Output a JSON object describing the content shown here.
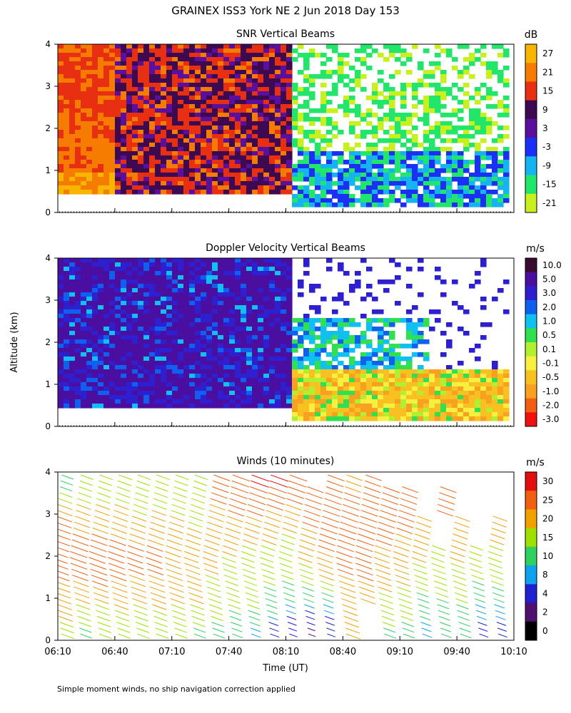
{
  "title": "GRAINEX ISS3 York NE   2 Jun 2018 Day 153",
  "y_axis_label": "Altitude (km)",
  "x_axis_label": "Time (UT)",
  "footnote": "Simple moment winds, no ship navigation correction applied",
  "time_ticks": [
    "06:10",
    "06:40",
    "07:10",
    "07:40",
    "08:10",
    "08:40",
    "09:10",
    "09:40",
    "10:10"
  ],
  "chart_data": [
    {
      "type": "heatmap",
      "title": "SNR Vertical Beams",
      "unit": "dB",
      "xlim": [
        "06:10",
        "10:10"
      ],
      "ylim": [
        0,
        4
      ],
      "yticks": [
        0,
        1,
        2,
        3,
        4
      ],
      "colorbar": {
        "labels": [
          "27",
          "21",
          "15",
          "9",
          "3",
          "-3",
          "-9",
          "-15",
          "-21"
        ],
        "colors": [
          "#f7b500",
          "#f57c00",
          "#e82f12",
          "#3d0a52",
          "#5a0f9e",
          "#1b2ff5",
          "#15b4f0",
          "#22e66a",
          "#c8ef1e"
        ]
      },
      "regions": [
        {
          "time": [
            "06:10",
            "06:40"
          ],
          "altitude": [
            0.5,
            4.0
          ],
          "dB": "15 to 27"
        },
        {
          "time": [
            "06:40",
            "08:12"
          ],
          "altitude": [
            0.5,
            4.0
          ],
          "dB": "9 to 21"
        },
        {
          "time": [
            "08:12",
            "10:10"
          ],
          "altitude": [
            0.2,
            1.5
          ],
          "dB": "-15 to -3"
        },
        {
          "time": [
            "08:12",
            "10:10"
          ],
          "altitude": [
            1.5,
            4.0
          ],
          "dB": "-21 to -9"
        }
      ]
    },
    {
      "type": "heatmap",
      "title": "Doppler Velocity Vertical Beams",
      "unit": "m/s",
      "xlim": [
        "06:10",
        "10:10"
      ],
      "ylim": [
        0,
        4
      ],
      "yticks": [
        0,
        1,
        2,
        3,
        4
      ],
      "colorbar": {
        "labels": [
          "10.0",
          "5.0",
          "3.0",
          "2.0",
          "1.0",
          "0.5",
          "0.1",
          "-0.1",
          "-0.5",
          "-1.0",
          "-2.0",
          "-3.0"
        ],
        "colors": [
          "#3a0a30",
          "#4a0fa0",
          "#2e1fd0",
          "#1060f0",
          "#10c0f0",
          "#30e050",
          "#b0f030",
          "#f8f040",
          "#f8c020",
          "#f8a020",
          "#f06010",
          "#f01010"
        ]
      },
      "regions": [
        {
          "time": [
            "06:10",
            "08:12"
          ],
          "altitude": [
            0.5,
            4.0
          ],
          "m_s": "3.0 to 5.0"
        },
        {
          "time": [
            "08:12",
            "10:10"
          ],
          "altitude": [
            0.2,
            1.5
          ],
          "m_s": "-1.0 to -0.1"
        },
        {
          "time": [
            "08:12",
            "09:10"
          ],
          "altitude": [
            1.5,
            2.6
          ],
          "m_s": "0.1 to 2.0"
        }
      ]
    },
    {
      "type": "wind_barbs",
      "title": "Winds (10 minutes)",
      "unit": "m/s",
      "xlim": [
        "06:10",
        "10:10"
      ],
      "ylim": [
        0,
        4
      ],
      "yticks": [
        0,
        1,
        2,
        3,
        4
      ],
      "colorbar": {
        "labels": [
          "30",
          "25",
          "20",
          "15",
          "10",
          "8",
          "4",
          "2",
          "0"
        ],
        "colors": [
          "#e01010",
          "#f06010",
          "#f0a000",
          "#a0e000",
          "#30d060",
          "#10a0f0",
          "#2020d0",
          "#501070",
          "#000000"
        ]
      },
      "profiles": [
        {
          "time": "06:10",
          "speeds": [
            18,
            22,
            26,
            28,
            25,
            14
          ]
        },
        {
          "time": "06:20",
          "speeds": [
            14,
            20,
            26,
            28,
            22,
            16
          ]
        },
        {
          "time": "06:30",
          "speeds": [
            16,
            20,
            27,
            27,
            22,
            17
          ]
        },
        {
          "time": "06:40",
          "speeds": [
            15,
            21,
            26,
            26,
            21,
            18
          ]
        },
        {
          "time": "06:50",
          "speeds": [
            16,
            20,
            25,
            25,
            20,
            17
          ]
        },
        {
          "time": "07:00",
          "speeds": [
            15,
            21,
            25,
            25,
            21,
            17
          ]
        },
        {
          "time": "07:10",
          "speeds": [
            15,
            20,
            24,
            24,
            20,
            17
          ]
        },
        {
          "time": "07:20",
          "speeds": [
            14,
            20,
            22,
            22,
            19,
            17
          ]
        },
        {
          "time": "07:30",
          "speeds": [
            14,
            17,
            20,
            22,
            24,
            26
          ]
        },
        {
          "time": "07:40",
          "speeds": [
            10,
            16,
            18,
            21,
            25,
            29
          ]
        },
        {
          "time": "07:50",
          "speeds": [
            8,
            16,
            17,
            20,
            25,
            30
          ]
        },
        {
          "time": "08:00",
          "speeds": [
            6,
            12,
            17,
            20,
            24,
            30
          ]
        },
        {
          "time": "08:10",
          "speeds": [
            4,
            10,
            16,
            18,
            22,
            29
          ]
        },
        {
          "time": "08:20",
          "speeds": [
            2,
            10,
            18,
            23,
            26,
            null
          ]
        },
        {
          "time": "08:30",
          "speeds": [
            4,
            10,
            22,
            26,
            28,
            27
          ]
        },
        {
          "time": "08:40",
          "speeds": [
            20,
            22,
            25,
            27,
            28,
            24
          ]
        },
        {
          "time": "08:50",
          "speeds": [
            null,
            22,
            26,
            27,
            28,
            25
          ]
        },
        {
          "time": "09:00",
          "speeds": [
            14,
            18,
            22,
            25,
            27,
            null
          ]
        },
        {
          "time": "09:10",
          "speeds": [
            13,
            18,
            21,
            24,
            26,
            null
          ]
        },
        {
          "time": "09:20",
          "speeds": [
            8,
            12,
            18,
            22,
            null,
            null
          ]
        },
        {
          "time": "09:30",
          "speeds": [
            10,
            14,
            18,
            null,
            26,
            null
          ]
        },
        {
          "time": "09:40",
          "speeds": [
            12,
            15,
            19,
            22,
            null,
            null
          ]
        },
        {
          "time": "09:50",
          "speeds": [
            6,
            10,
            16,
            null,
            null,
            null
          ]
        },
        {
          "time": "10:00",
          "speeds": [
            6,
            10,
            18,
            20,
            null,
            null
          ]
        }
      ]
    }
  ]
}
